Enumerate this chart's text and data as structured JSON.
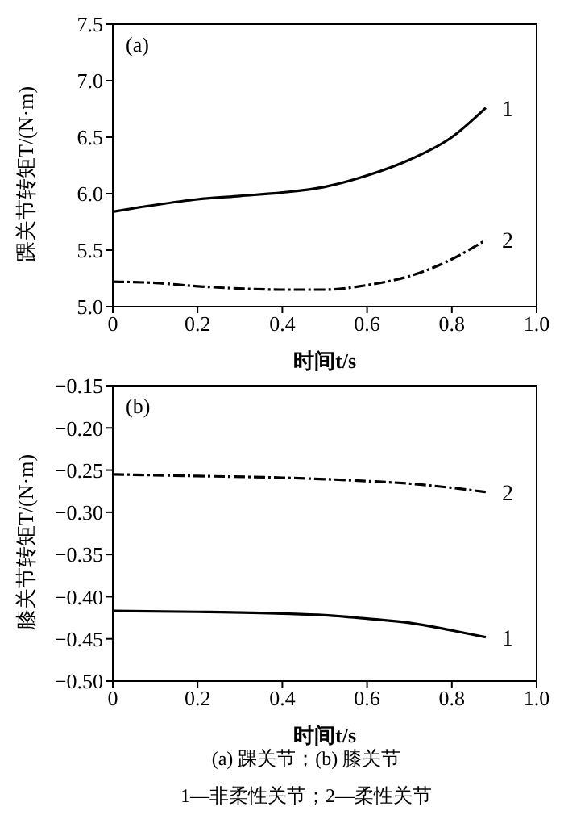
{
  "chart_data": [
    {
      "type": "line",
      "annotations": [
        "(a)"
      ],
      "xlabel": "时间t/s",
      "ylabel": "踝关节转矩T/(N·m)",
      "xlim": [
        0,
        1
      ],
      "xticks": [
        0,
        0.2,
        0.4,
        0.6,
        0.8,
        {
          "value": 1,
          "label": "1.0"
        }
      ],
      "ylim": [
        5,
        7.5
      ],
      "yticks": [
        {
          "value": 5,
          "label": "5.0"
        },
        5.5,
        {
          "value": 6,
          "label": "6.0"
        },
        6.5,
        {
          "value": 7,
          "label": "7.0"
        },
        7.5
      ],
      "legend": false,
      "series": [
        {
          "name": "1",
          "color": "#000000",
          "line_style": "solid",
          "x": [
            0,
            0.1,
            0.2,
            0.3,
            0.4,
            0.5,
            0.6,
            0.7,
            0.8,
            0.88
          ],
          "values": [
            5.84,
            5.9,
            5.95,
            5.98,
            6.01,
            6.06,
            6.16,
            6.3,
            6.5,
            6.76
          ]
        },
        {
          "name": "2",
          "color": "#000000",
          "line_style": "dashed",
          "x": [
            0,
            0.1,
            0.2,
            0.3,
            0.4,
            0.5,
            0.6,
            0.7,
            0.8,
            0.88
          ],
          "values": [
            5.22,
            5.21,
            5.18,
            5.16,
            5.15,
            5.15,
            5.19,
            5.27,
            5.42,
            5.59
          ]
        }
      ]
    },
    {
      "type": "line",
      "annotations": [
        "(b)",
        "(a) 踝关节；(b) 膝关节",
        "1—非柔性关节；2—柔性关节"
      ],
      "xlabel": "时间t/s",
      "ylabel": "膝关节转矩T/(N·m)",
      "xlim": [
        0,
        1
      ],
      "xticks": [
        0,
        0.2,
        0.4,
        0.6,
        0.8,
        {
          "value": 1,
          "label": "1.0"
        }
      ],
      "ylim": [
        -0.5,
        -0.15
      ],
      "yticks": [
        {
          "value": -0.5,
          "label": "−0.50"
        },
        {
          "value": -0.45,
          "label": "−0.45"
        },
        {
          "value": -0.4,
          "label": "−0.40"
        },
        {
          "value": -0.35,
          "label": "−0.35"
        },
        {
          "value": -0.3,
          "label": "−0.30"
        },
        {
          "value": -0.25,
          "label": "−0.25"
        },
        {
          "value": -0.2,
          "label": "−0.20"
        },
        {
          "value": -0.15,
          "label": "−0.15"
        }
      ],
      "legend": false,
      "series": [
        {
          "name": "1",
          "color": "#000000",
          "line_style": "solid",
          "x": [
            0,
            0.2,
            0.4,
            0.5,
            0.6,
            0.7,
            0.8,
            0.88
          ],
          "values": [
            -0.417,
            -0.418,
            -0.42,
            -0.422,
            -0.426,
            -0.431,
            -0.44,
            -0.448
          ]
        },
        {
          "name": "2",
          "color": "#000000",
          "line_style": "dashed",
          "x": [
            0,
            0.2,
            0.4,
            0.6,
            0.7,
            0.8,
            0.88
          ],
          "values": [
            -0.255,
            -0.257,
            -0.259,
            -0.263,
            -0.266,
            -0.271,
            -0.276
          ]
        }
      ]
    }
  ]
}
